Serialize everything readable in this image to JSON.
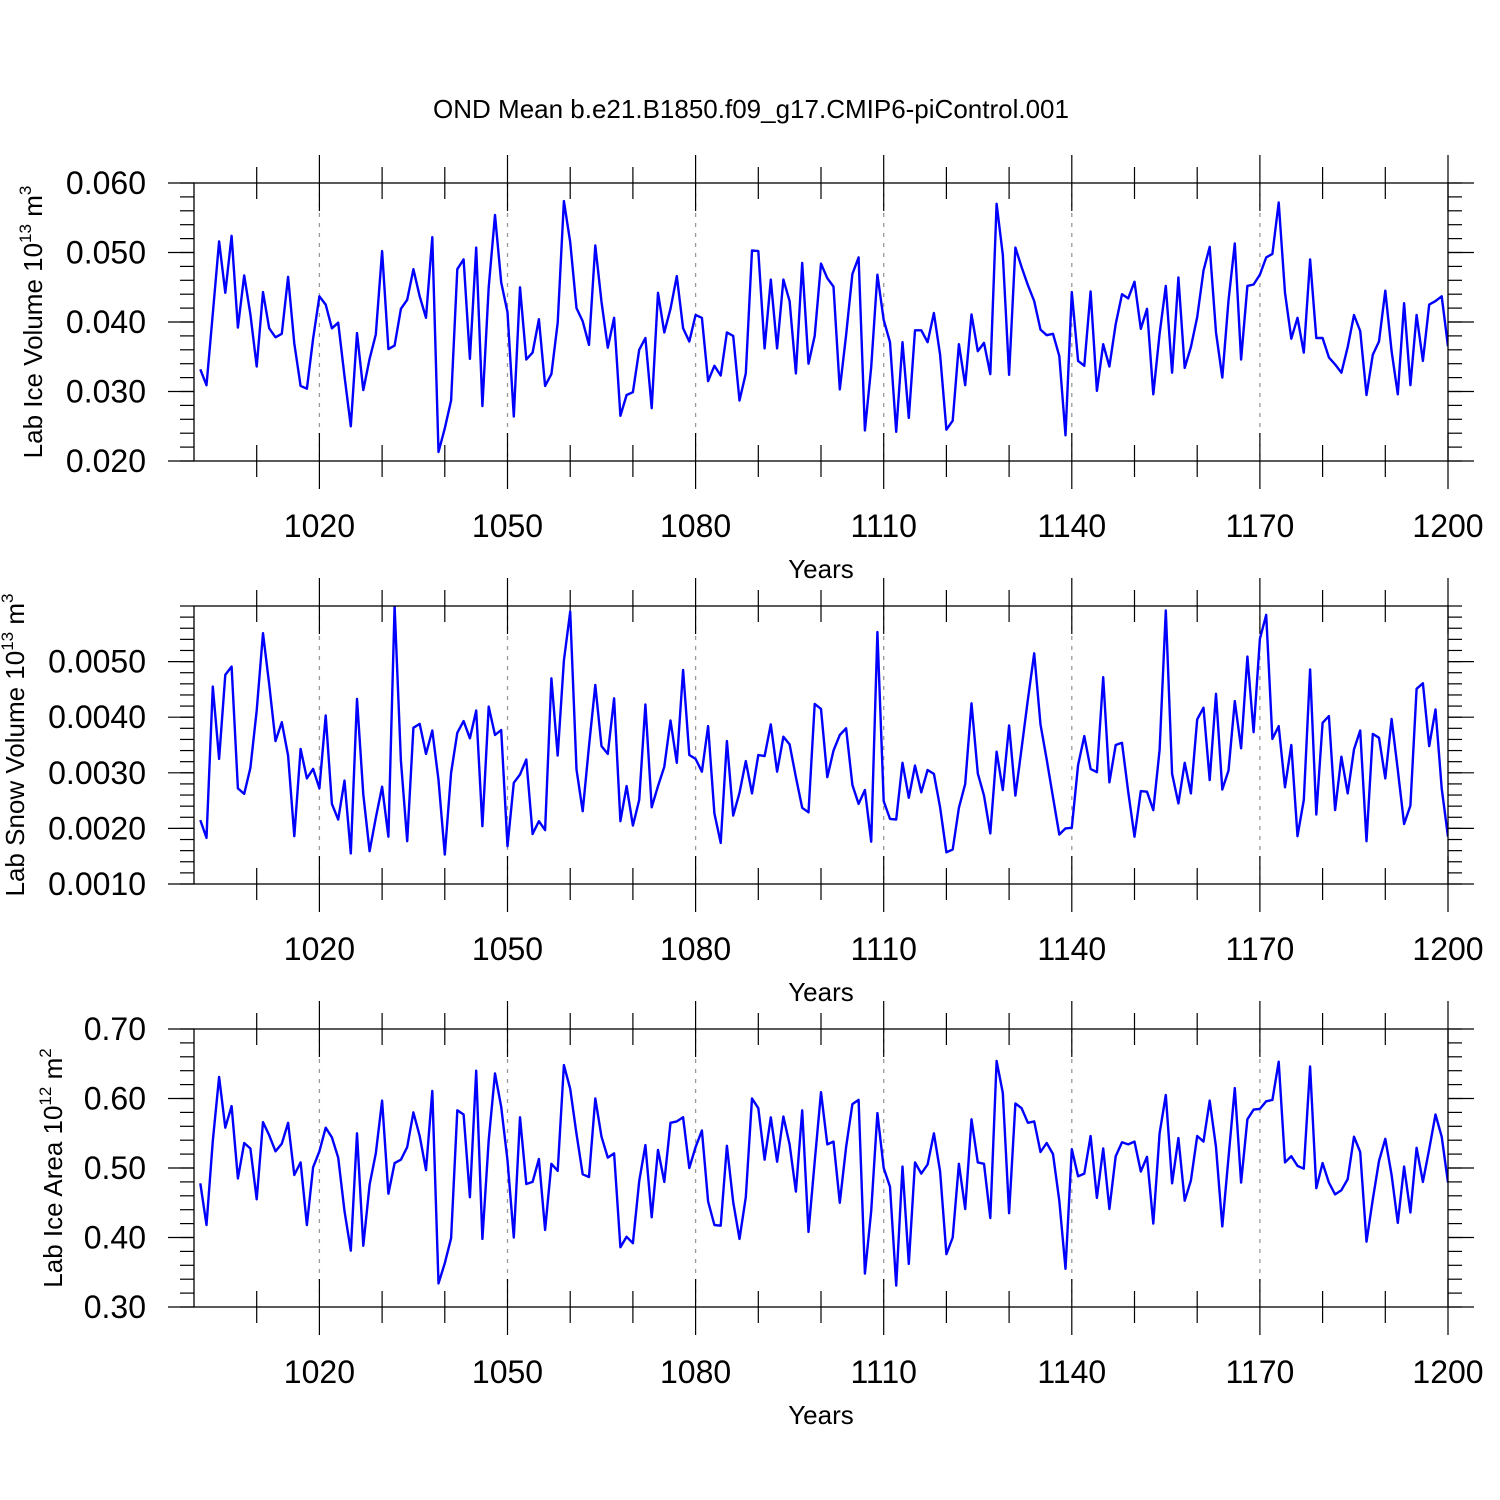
{
  "figure": {
    "title": "OND Mean b.e21.B1850.f09_g17.CMIP6-piControl.001"
  },
  "chart_data": [
    {
      "type": "line",
      "name": "ice-volume",
      "xlabel": "Years",
      "ylabel_main": "Lab Ice Volume 10",
      "ylabel_sup": "13",
      "ylabel_unit": "m",
      "ylabel_unit_sup": "3",
      "xlim": [
        1000,
        1200
      ],
      "ylim": [
        0.02,
        0.06
      ],
      "x_ticks": [
        1020,
        1050,
        1080,
        1110,
        1140,
        1170,
        1200
      ],
      "y_ticks": [
        "0.020",
        "0.030",
        "0.040",
        "0.050",
        "0.060"
      ],
      "x_start": 1001,
      "values": [
        0.0332,
        0.0309,
        0.0412,
        0.0516,
        0.0442,
        0.0524,
        0.0392,
        0.0467,
        0.0411,
        0.0336,
        0.0443,
        0.0391,
        0.0378,
        0.0383,
        0.0465,
        0.0369,
        0.0308,
        0.0304,
        0.0376,
        0.0437,
        0.0425,
        0.0391,
        0.0399,
        0.0322,
        0.025,
        0.0384,
        0.0302,
        0.0347,
        0.0382,
        0.0502,
        0.0361,
        0.0366,
        0.0419,
        0.0432,
        0.0476,
        0.0437,
        0.0406,
        0.0522,
        0.0213,
        0.0247,
        0.0287,
        0.0476,
        0.049,
        0.0347,
        0.0507,
        0.0279,
        0.045,
        0.0554,
        0.0457,
        0.0414,
        0.0264,
        0.045,
        0.0346,
        0.0356,
        0.0404,
        0.0308,
        0.0325,
        0.0399,
        0.0574,
        0.0515,
        0.042,
        0.0401,
        0.0367,
        0.051,
        0.0429,
        0.0363,
        0.0406,
        0.0265,
        0.0295,
        0.0299,
        0.036,
        0.0377,
        0.0276,
        0.0442,
        0.0385,
        0.0419,
        0.0466,
        0.0391,
        0.0372,
        0.041,
        0.0406,
        0.0315,
        0.0337,
        0.0323,
        0.0385,
        0.038,
        0.0287,
        0.0326,
        0.0503,
        0.0502,
        0.0362,
        0.0461,
        0.0362,
        0.0461,
        0.043,
        0.0326,
        0.0485,
        0.034,
        0.038,
        0.0484,
        0.0463,
        0.0451,
        0.0303,
        0.0381,
        0.0469,
        0.0493,
        0.0244,
        0.0335,
        0.0468,
        0.0403,
        0.0371,
        0.0242,
        0.0371,
        0.0262,
        0.0388,
        0.0388,
        0.0371,
        0.0413,
        0.0353,
        0.0245,
        0.0258,
        0.0368,
        0.0309,
        0.0411,
        0.0358,
        0.037,
        0.0325,
        0.057,
        0.0497,
        0.0324,
        0.0507,
        0.0479,
        0.0453,
        0.043,
        0.0389,
        0.0381,
        0.0383,
        0.0351,
        0.0237,
        0.0443,
        0.0344,
        0.0337,
        0.0444,
        0.0301,
        0.0368,
        0.0336,
        0.0397,
        0.044,
        0.0434,
        0.0458,
        0.039,
        0.0419,
        0.0296,
        0.0383,
        0.0452,
        0.0327,
        0.0464,
        0.0334,
        0.0364,
        0.0407,
        0.0474,
        0.0508,
        0.0385,
        0.032,
        0.0431,
        0.0513,
        0.0346,
        0.0452,
        0.0454,
        0.0468,
        0.0493,
        0.0498,
        0.0572,
        0.0442,
        0.0376,
        0.0406,
        0.0356,
        0.049,
        0.0377,
        0.0377,
        0.0349,
        0.0339,
        0.0327,
        0.0364,
        0.041,
        0.0387,
        0.0295,
        0.0353,
        0.0372,
        0.0445,
        0.0358,
        0.0296,
        0.0427,
        0.0309,
        0.041,
        0.0344,
        0.0425,
        0.043,
        0.0437,
        0.0365
      ]
    },
    {
      "type": "line",
      "name": "snow-volume",
      "xlabel": "Years",
      "ylabel_main": "Lab Snow Volume 10",
      "ylabel_sup": "13",
      "ylabel_unit": "m",
      "ylabel_unit_sup": "3",
      "xlim": [
        1000,
        1200
      ],
      "ylim": [
        0.001,
        0.006
      ],
      "x_ticks": [
        1020,
        1050,
        1080,
        1110,
        1140,
        1170,
        1200
      ],
      "y_ticks": [
        "0.0010",
        "0.0020",
        "0.0030",
        "0.0040",
        "0.0050"
      ],
      "x_start": 1001,
      "values": [
        0.00215,
        0.00183,
        0.00455,
        0.00325,
        0.00476,
        0.00491,
        0.00272,
        0.00262,
        0.00309,
        0.00412,
        0.00551,
        0.00459,
        0.00357,
        0.00391,
        0.00331,
        0.00186,
        0.00343,
        0.0029,
        0.00307,
        0.00272,
        0.00403,
        0.00244,
        0.00216,
        0.00286,
        0.00155,
        0.00433,
        0.00261,
        0.00159,
        0.00219,
        0.00275,
        0.00185,
        0.006,
        0.00322,
        0.00177,
        0.00381,
        0.00388,
        0.00334,
        0.00376,
        0.00287,
        0.00153,
        0.003,
        0.00372,
        0.00393,
        0.00362,
        0.00412,
        0.00204,
        0.00419,
        0.00368,
        0.00377,
        0.00168,
        0.00282,
        0.00297,
        0.00324,
        0.0019,
        0.00213,
        0.00197,
        0.0047,
        0.00331,
        0.00502,
        0.0059,
        0.00306,
        0.00231,
        0.00348,
        0.00458,
        0.00348,
        0.00334,
        0.00434,
        0.00213,
        0.00276,
        0.00205,
        0.00251,
        0.00423,
        0.00238,
        0.00276,
        0.00311,
        0.00394,
        0.00318,
        0.00485,
        0.00332,
        0.00325,
        0.00302,
        0.00384,
        0.00227,
        0.00174,
        0.00357,
        0.00223,
        0.00264,
        0.00321,
        0.00263,
        0.00332,
        0.0033,
        0.00387,
        0.00302,
        0.00365,
        0.00351,
        0.00292,
        0.00237,
        0.00229,
        0.00424,
        0.00415,
        0.00292,
        0.0034,
        0.00368,
        0.0038,
        0.00278,
        0.00244,
        0.00269,
        0.00176,
        0.00553,
        0.00249,
        0.00217,
        0.00216,
        0.00318,
        0.00255,
        0.00313,
        0.00265,
        0.00305,
        0.00298,
        0.00238,
        0.00157,
        0.00162,
        0.00237,
        0.0028,
        0.00425,
        0.00299,
        0.00259,
        0.00191,
        0.00338,
        0.00269,
        0.00385,
        0.00259,
        0.00344,
        0.00432,
        0.00515,
        0.00387,
        0.00324,
        0.00256,
        0.00189,
        0.002,
        0.00201,
        0.00314,
        0.00366,
        0.00307,
        0.00301,
        0.00472,
        0.00283,
        0.0035,
        0.00354,
        0.00266,
        0.00185,
        0.00267,
        0.00266,
        0.00233,
        0.00341,
        0.00592,
        0.00298,
        0.00245,
        0.00318,
        0.00263,
        0.00396,
        0.00417,
        0.00287,
        0.00442,
        0.0027,
        0.00304,
        0.00429,
        0.00344,
        0.00509,
        0.00373,
        0.00541,
        0.00584,
        0.00361,
        0.00384,
        0.00274,
        0.0035,
        0.00186,
        0.00251,
        0.00486,
        0.00225,
        0.0039,
        0.00402,
        0.00233,
        0.00329,
        0.00263,
        0.00342,
        0.00376,
        0.00177,
        0.0037,
        0.00363,
        0.0029,
        0.00397,
        0.00305,
        0.00208,
        0.00241,
        0.00451,
        0.00461,
        0.00348,
        0.00414,
        0.00272,
        0.00185
      ]
    },
    {
      "type": "line",
      "name": "ice-area",
      "xlabel": "Years",
      "ylabel_main": "Lab Ice Area 10",
      "ylabel_sup": "12",
      "ylabel_unit": "m",
      "ylabel_unit_sup": "2",
      "xlim": [
        1000,
        1200
      ],
      "ylim": [
        0.3,
        0.7
      ],
      "x_ticks": [
        1020,
        1050,
        1080,
        1110,
        1140,
        1170,
        1200
      ],
      "y_ticks": [
        "0.30",
        "0.40",
        "0.50",
        "0.60",
        "0.70"
      ],
      "x_start": 1001,
      "values": [
        0.478,
        0.418,
        0.539,
        0.631,
        0.558,
        0.589,
        0.485,
        0.536,
        0.528,
        0.455,
        0.566,
        0.547,
        0.524,
        0.535,
        0.565,
        0.49,
        0.508,
        0.418,
        0.501,
        0.524,
        0.558,
        0.544,
        0.515,
        0.438,
        0.381,
        0.55,
        0.388,
        0.476,
        0.521,
        0.597,
        0.463,
        0.507,
        0.512,
        0.53,
        0.58,
        0.546,
        0.497,
        0.611,
        0.334,
        0.363,
        0.399,
        0.583,
        0.577,
        0.458,
        0.64,
        0.398,
        0.54,
        0.636,
        0.588,
        0.511,
        0.4,
        0.573,
        0.477,
        0.48,
        0.513,
        0.411,
        0.506,
        0.496,
        0.648,
        0.614,
        0.549,
        0.491,
        0.487,
        0.6,
        0.545,
        0.515,
        0.521,
        0.386,
        0.401,
        0.392,
        0.481,
        0.533,
        0.429,
        0.526,
        0.48,
        0.565,
        0.567,
        0.573,
        0.5,
        0.53,
        0.554,
        0.452,
        0.418,
        0.417,
        0.532,
        0.451,
        0.398,
        0.458,
        0.6,
        0.586,
        0.512,
        0.573,
        0.509,
        0.574,
        0.534,
        0.466,
        0.583,
        0.408,
        0.509,
        0.609,
        0.534,
        0.538,
        0.45,
        0.53,
        0.592,
        0.598,
        0.348,
        0.438,
        0.579,
        0.5,
        0.473,
        0.331,
        0.502,
        0.362,
        0.508,
        0.492,
        0.505,
        0.55,
        0.495,
        0.376,
        0.4,
        0.506,
        0.441,
        0.57,
        0.508,
        0.506,
        0.428,
        0.654,
        0.608,
        0.435,
        0.593,
        0.586,
        0.565,
        0.567,
        0.523,
        0.536,
        0.52,
        0.453,
        0.355,
        0.527,
        0.488,
        0.492,
        0.546,
        0.457,
        0.528,
        0.441,
        0.517,
        0.537,
        0.534,
        0.538,
        0.495,
        0.516,
        0.42,
        0.55,
        0.605,
        0.478,
        0.543,
        0.453,
        0.482,
        0.546,
        0.538,
        0.597,
        0.53,
        0.416,
        0.515,
        0.615,
        0.479,
        0.57,
        0.584,
        0.585,
        0.596,
        0.598,
        0.653,
        0.508,
        0.517,
        0.503,
        0.499,
        0.646,
        0.471,
        0.507,
        0.479,
        0.462,
        0.468,
        0.484,
        0.545,
        0.523,
        0.394,
        0.455,
        0.51,
        0.542,
        0.49,
        0.421,
        0.502,
        0.436,
        0.529,
        0.48,
        0.527,
        0.577,
        0.545,
        0.479
      ]
    }
  ]
}
